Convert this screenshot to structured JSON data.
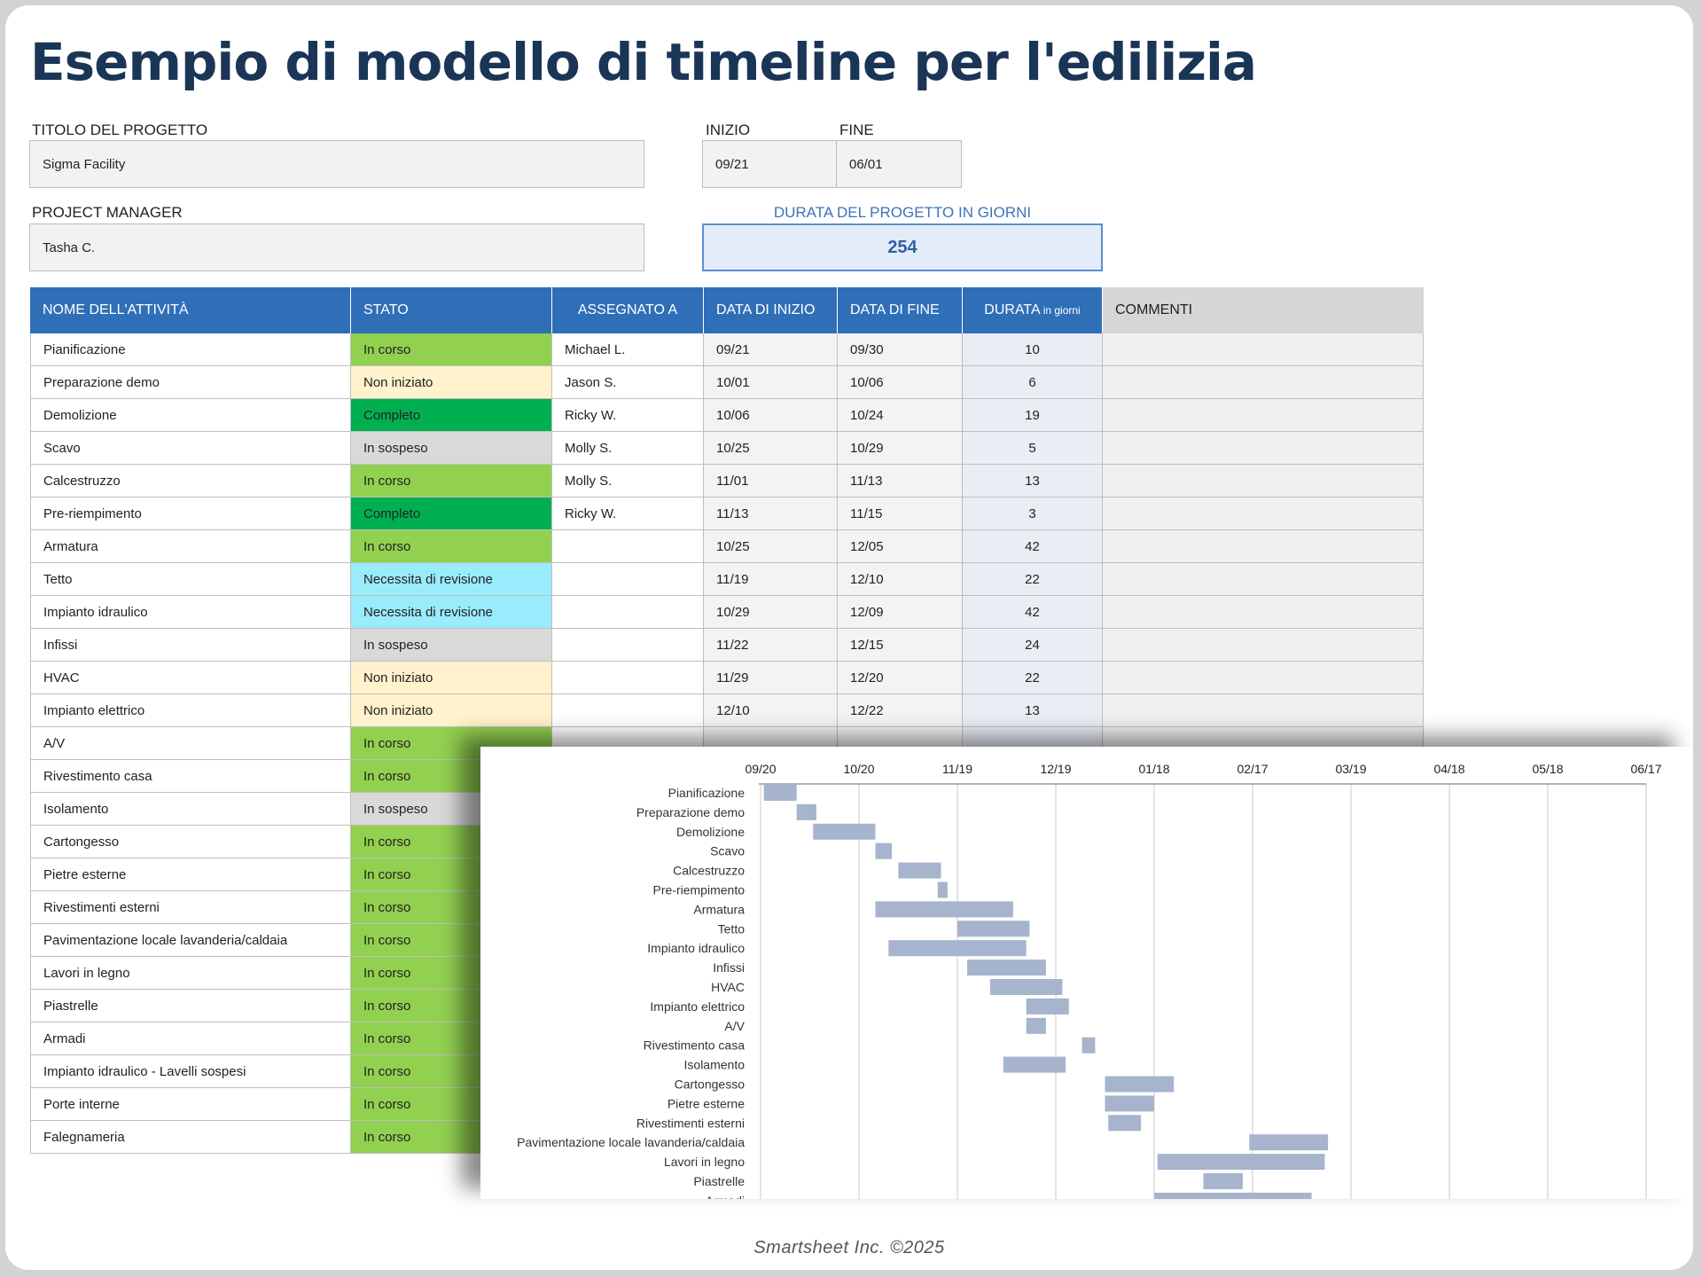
{
  "title": "Esempio di modello di timeline per l'edilizia",
  "project": {
    "title_label": "TITOLO DEL PROGETTO",
    "title_value": "Sigma Facility",
    "manager_label": "PROJECT MANAGER",
    "manager_value": "Tasha C.",
    "start_label": "INIZIO",
    "start_value": "09/21",
    "end_label": "FINE",
    "end_value": "06/01",
    "duration_label": "DURATA DEL PROGETTO IN GIORNI",
    "duration_value": "254"
  },
  "table": {
    "headers": {
      "task": "NOME DELL'ATTIVITÀ",
      "status": "STATO",
      "assigned": "ASSEGNATO A",
      "start": "DATA DI INIZIO",
      "end": "DATA DI FINE",
      "duration": "DURATA",
      "duration_unit": "in giorni",
      "comments": "COMMENTI"
    },
    "status_colors": {
      "In corso": "#92d050",
      "Non iniziato": "#fff2cc",
      "Completo": "#00b050",
      "In sospeso": "#d9d9d9",
      "Necessita di revisione": "#99ecfb"
    },
    "rows": [
      {
        "task": "Pianificazione",
        "status": "In corso",
        "assigned": "Michael L.",
        "start": "09/21",
        "end": "09/30",
        "duration": "10"
      },
      {
        "task": "Preparazione demo",
        "status": "Non iniziato",
        "assigned": "Jason S.",
        "start": "10/01",
        "end": "10/06",
        "duration": "6"
      },
      {
        "task": "Demolizione",
        "status": "Completo",
        "assigned": "Ricky W.",
        "start": "10/06",
        "end": "10/24",
        "duration": "19"
      },
      {
        "task": "Scavo",
        "status": "In sospeso",
        "assigned": "Molly S.",
        "start": "10/25",
        "end": "10/29",
        "duration": "5"
      },
      {
        "task": "Calcestruzzo",
        "status": "In corso",
        "assigned": "Molly S.",
        "start": "11/01",
        "end": "11/13",
        "duration": "13"
      },
      {
        "task": "Pre-riempimento",
        "status": "Completo",
        "assigned": "Ricky W.",
        "start": "11/13",
        "end": "11/15",
        "duration": "3"
      },
      {
        "task": "Armatura",
        "status": "In corso",
        "assigned": "",
        "start": "10/25",
        "end": "12/05",
        "duration": "42"
      },
      {
        "task": "Tetto",
        "status": "Necessita di revisione",
        "assigned": "",
        "start": "11/19",
        "end": "12/10",
        "duration": "22"
      },
      {
        "task": "Impianto idraulico",
        "status": "Necessita di revisione",
        "assigned": "",
        "start": "10/29",
        "end": "12/09",
        "duration": "42"
      },
      {
        "task": "Infissi",
        "status": "In sospeso",
        "assigned": "",
        "start": "11/22",
        "end": "12/15",
        "duration": "24"
      },
      {
        "task": "HVAC",
        "status": "Non iniziato",
        "assigned": "",
        "start": "11/29",
        "end": "12/20",
        "duration": "22"
      },
      {
        "task": "Impianto elettrico",
        "status": "Non iniziato",
        "assigned": "",
        "start": "12/10",
        "end": "12/22",
        "duration": "13"
      },
      {
        "task": "A/V",
        "status": "In corso",
        "assigned": "",
        "start": "",
        "end": "",
        "duration": ""
      },
      {
        "task": "Rivestimento casa",
        "status": "In corso",
        "assigned": "",
        "start": "",
        "end": "",
        "duration": ""
      },
      {
        "task": "Isolamento",
        "status": "In sospeso",
        "assigned": "",
        "start": "",
        "end": "",
        "duration": ""
      },
      {
        "task": "Cartongesso",
        "status": "In corso",
        "assigned": "",
        "start": "",
        "end": "",
        "duration": ""
      },
      {
        "task": "Pietre esterne",
        "status": "In corso",
        "assigned": "",
        "start": "",
        "end": "",
        "duration": ""
      },
      {
        "task": "Rivestimenti esterni",
        "status": "In corso",
        "assigned": "",
        "start": "",
        "end": "",
        "duration": ""
      },
      {
        "task": "Pavimentazione locale lavanderia/caldaia",
        "status": "In corso",
        "assigned": "",
        "start": "",
        "end": "",
        "duration": ""
      },
      {
        "task": "Lavori in legno",
        "status": "In corso",
        "assigned": "",
        "start": "",
        "end": "",
        "duration": ""
      },
      {
        "task": "Piastrelle",
        "status": "In corso",
        "assigned": "",
        "start": "",
        "end": "",
        "duration": ""
      },
      {
        "task": "Armadi",
        "status": "In corso",
        "assigned": "",
        "start": "",
        "end": "",
        "duration": ""
      },
      {
        "task": "Impianto idraulico - Lavelli sospesi",
        "status": "In corso",
        "assigned": "",
        "start": "",
        "end": "",
        "duration": ""
      },
      {
        "task": "Porte interne",
        "status": "In corso",
        "assigned": "",
        "start": "",
        "end": "",
        "duration": ""
      },
      {
        "task": "Falegnameria",
        "status": "In corso",
        "assigned": "",
        "start": "",
        "end": "",
        "duration": ""
      }
    ]
  },
  "chart_data": {
    "type": "bar",
    "orientation": "horizontal-gantt",
    "x_ticks": [
      "09/20",
      "10/20",
      "11/19",
      "12/19",
      "01/18",
      "02/17",
      "03/19",
      "04/18",
      "05/18",
      "06/17"
    ],
    "x_axis_position": "top",
    "grid": true,
    "bar_color": "#a6b4cd",
    "tasks": [
      {
        "name": "Pianificazione",
        "start": "09/21",
        "end": "10/01"
      },
      {
        "name": "Preparazione demo",
        "start": "10/01",
        "end": "10/07"
      },
      {
        "name": "Demolizione",
        "start": "10/06",
        "end": "10/25"
      },
      {
        "name": "Scavo",
        "start": "10/25",
        "end": "10/30"
      },
      {
        "name": "Calcestruzzo",
        "start": "11/01",
        "end": "11/14"
      },
      {
        "name": "Pre-riempimento",
        "start": "11/13",
        "end": "11/16"
      },
      {
        "name": "Armatura",
        "start": "10/25",
        "end": "12/06"
      },
      {
        "name": "Tetto",
        "start": "11/19",
        "end": "12/11"
      },
      {
        "name": "Impianto idraulico",
        "start": "10/29",
        "end": "12/10"
      },
      {
        "name": "Infissi",
        "start": "11/22",
        "end": "12/16"
      },
      {
        "name": "HVAC",
        "start": "11/29",
        "end": "12/21"
      },
      {
        "name": "Impianto elettrico",
        "start": "12/10",
        "end": "12/23"
      },
      {
        "name": "A/V",
        "start": "12/10",
        "end": "12/16"
      },
      {
        "name": "Rivestimento casa",
        "start": "12/27",
        "end": "12/31"
      },
      {
        "name": "Isolamento",
        "start": "12/03",
        "end": "12/22"
      },
      {
        "name": "Cartongesso",
        "start": "01/03",
        "end": "01/24"
      },
      {
        "name": "Pietre esterne",
        "start": "01/03",
        "end": "01/18"
      },
      {
        "name": "Rivestimenti esterni",
        "start": "01/04",
        "end": "01/14"
      },
      {
        "name": "Pavimentazione locale lavanderia/caldaia",
        "start": "02/16",
        "end": "03/12"
      },
      {
        "name": "Lavori in legno",
        "start": "01/19",
        "end": "03/11"
      },
      {
        "name": "Piastrelle",
        "start": "02/02",
        "end": "02/14"
      },
      {
        "name": "Armadi",
        "start": "01/18",
        "end": "03/07"
      }
    ]
  },
  "footer": "Smartsheet Inc. ©2025"
}
